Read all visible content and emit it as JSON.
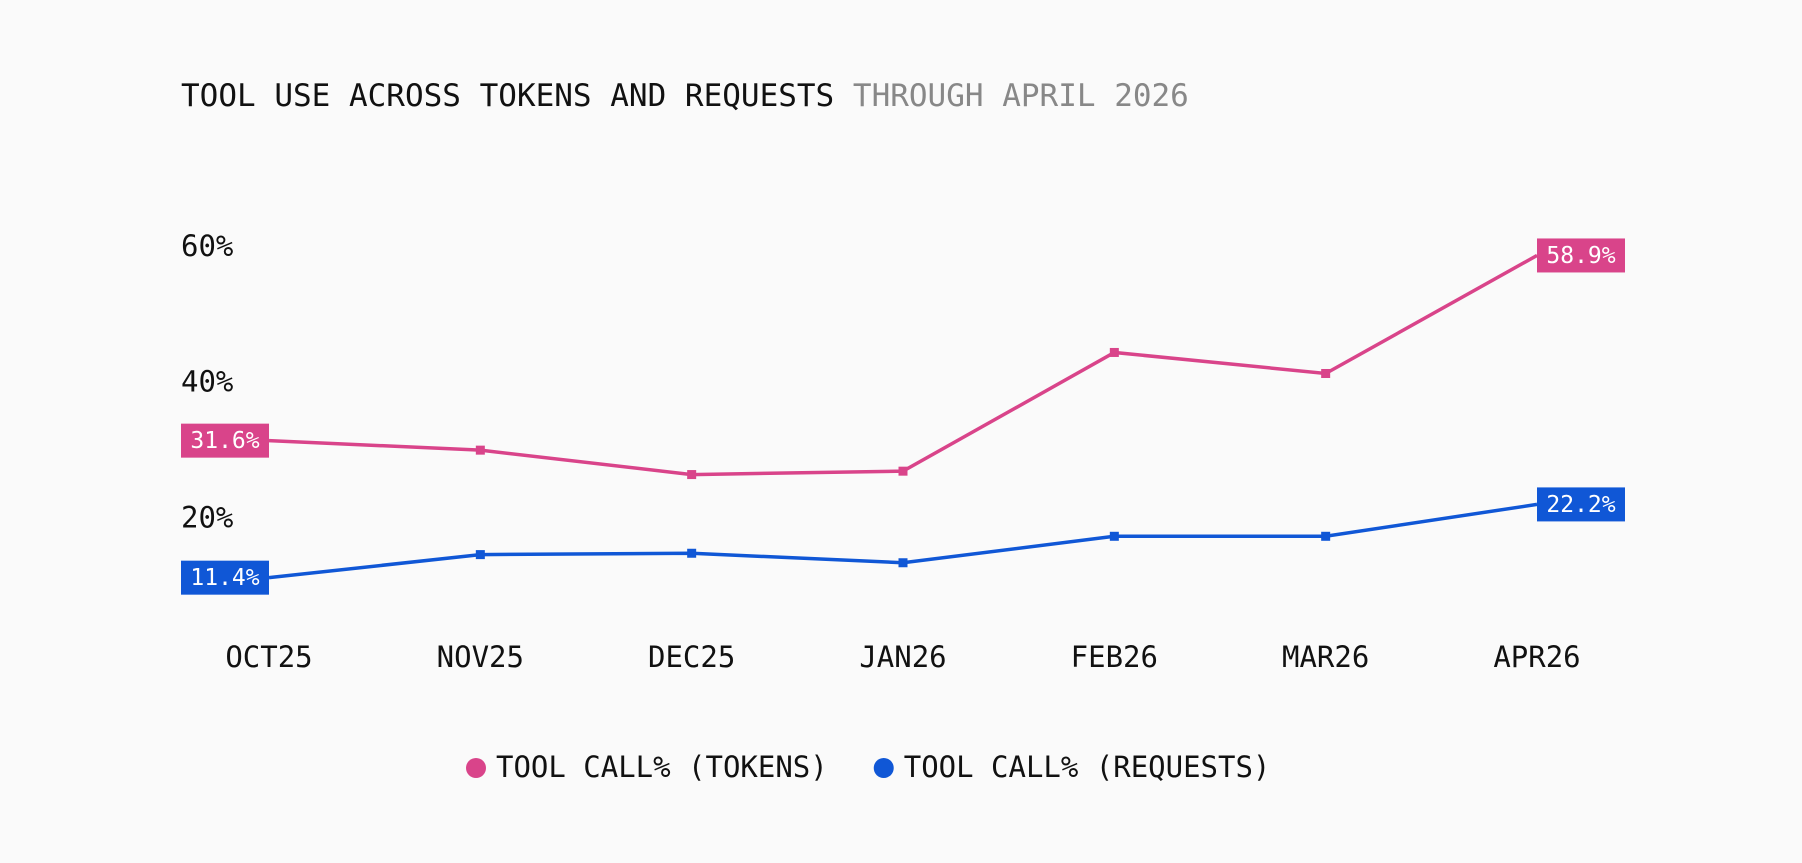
{
  "chart_data": {
    "type": "line",
    "title": "TOOL USE ACROSS TOKENS AND REQUESTS",
    "subtitle": "THROUGH APRIL 2026",
    "categories": [
      "OCT25",
      "NOV25",
      "DEC25",
      "JAN26",
      "FEB26",
      "MAR26",
      "APR26"
    ],
    "series": [
      {
        "name": "TOOL CALL% (TOKENS)",
        "color": "#d9448a",
        "values": [
          31.6,
          30.2,
          26.6,
          27.1,
          44.6,
          41.5,
          58.9
        ],
        "value_labels": [
          "31.6%",
          null,
          null,
          null,
          null,
          null,
          "58.9%"
        ]
      },
      {
        "name": "TOOL CALL% (REQUESTS)",
        "color": "#1057d6",
        "values": [
          11.4,
          14.8,
          15.0,
          13.6,
          17.5,
          17.5,
          22.2
        ],
        "value_labels": [
          "11.4%",
          null,
          null,
          null,
          null,
          null,
          "22.2%"
        ]
      }
    ],
    "ylim": [
      0,
      60
    ],
    "yticks": [
      {
        "value": 20,
        "label": "20%"
      },
      {
        "value": 40,
        "label": "40%"
      },
      {
        "value": 60,
        "label": "60%"
      }
    ],
    "grid": false,
    "legend": "bottom"
  }
}
